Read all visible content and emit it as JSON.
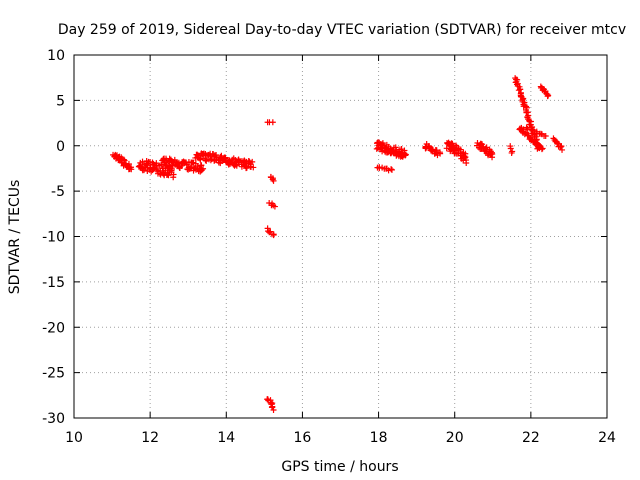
{
  "chart_data": {
    "type": "scatter",
    "title": "Day 259 of 2019, Sidereal Day-to-day VTEC variation (SDTVAR) for receiver mtcv",
    "xlabel": "GPS time / hours",
    "ylabel": "SDTVAR / TECUs",
    "xlim": [
      10,
      24
    ],
    "ylim": [
      -30,
      10
    ],
    "xticks": [
      10,
      12,
      14,
      16,
      18,
      20,
      22,
      24
    ],
    "yticks": [
      10,
      5,
      0,
      -5,
      -10,
      -15,
      -20,
      -25,
      -30
    ],
    "grid": true,
    "marker": "plus",
    "series_color": "#ff0000",
    "clusters": [
      {
        "x0": 11.05,
        "x1": 11.5,
        "y0": -1.0,
        "y1": -2.5,
        "jitter": 0.6,
        "n": 40
      },
      {
        "x0": 11.7,
        "x1": 12.6,
        "y0": -2.0,
        "y1": -3.0,
        "jitter": 1.2,
        "n": 70
      },
      {
        "x0": 12.3,
        "x1": 13.4,
        "y0": -1.7,
        "y1": -2.5,
        "jitter": 0.9,
        "n": 80
      },
      {
        "x0": 13.2,
        "x1": 14.7,
        "y0": -1.0,
        "y1": -2.2,
        "jitter": 0.9,
        "n": 100
      },
      {
        "x0": 15.1,
        "x1": 15.2,
        "y0": 2.6,
        "y1": 2.6,
        "jitter": 0.05,
        "n": 3
      },
      {
        "x0": 15.15,
        "x1": 15.25,
        "y0": -3.4,
        "y1": -3.8,
        "jitter": 0.2,
        "n": 5
      },
      {
        "x0": 15.15,
        "x1": 15.25,
        "y0": -6.3,
        "y1": -6.7,
        "jitter": 0.2,
        "n": 5
      },
      {
        "x0": 15.1,
        "x1": 15.25,
        "y0": -9.2,
        "y1": -9.8,
        "jitter": 0.3,
        "n": 7
      },
      {
        "x0": 15.1,
        "x1": 15.25,
        "y0": -27.8,
        "y1": -29.0,
        "jitter": 0.3,
        "n": 12
      },
      {
        "x0": 17.95,
        "x1": 18.35,
        "y0": -2.4,
        "y1": -2.7,
        "jitter": 0.2,
        "n": 10
      },
      {
        "x0": 17.95,
        "x1": 18.7,
        "y0": 0.1,
        "y1": -1.0,
        "jitter": 1.0,
        "n": 70
      },
      {
        "x0": 19.2,
        "x1": 19.6,
        "y0": 0.0,
        "y1": -0.9,
        "jitter": 0.6,
        "n": 25
      },
      {
        "x0": 19.8,
        "x1": 20.3,
        "y0": 0.3,
        "y1": -1.4,
        "jitter": 1.1,
        "n": 50
      },
      {
        "x0": 20.6,
        "x1": 21.0,
        "y0": 0.2,
        "y1": -1.1,
        "jitter": 0.8,
        "n": 30
      },
      {
        "x0": 21.45,
        "x1": 21.5,
        "y0": 0.0,
        "y1": -0.8,
        "jitter": 0.3,
        "n": 4
      },
      {
        "x0": 21.6,
        "x1": 22.2,
        "y0": 7.5,
        "y1": -0.3,
        "jitter": 0.3,
        "n": 60
      },
      {
        "x0": 21.7,
        "x1": 22.3,
        "y0": 2.0,
        "y1": -0.4,
        "jitter": 0.3,
        "n": 35
      },
      {
        "x0": 21.9,
        "x1": 22.4,
        "y0": 2.0,
        "y1": 1.0,
        "jitter": 0.2,
        "n": 12
      },
      {
        "x0": 22.28,
        "x1": 22.45,
        "y0": 6.5,
        "y1": 5.5,
        "jitter": 0.2,
        "n": 12
      },
      {
        "x0": 22.6,
        "x1": 22.8,
        "y0": 0.8,
        "y1": -0.3,
        "jitter": 0.4,
        "n": 15
      }
    ]
  }
}
